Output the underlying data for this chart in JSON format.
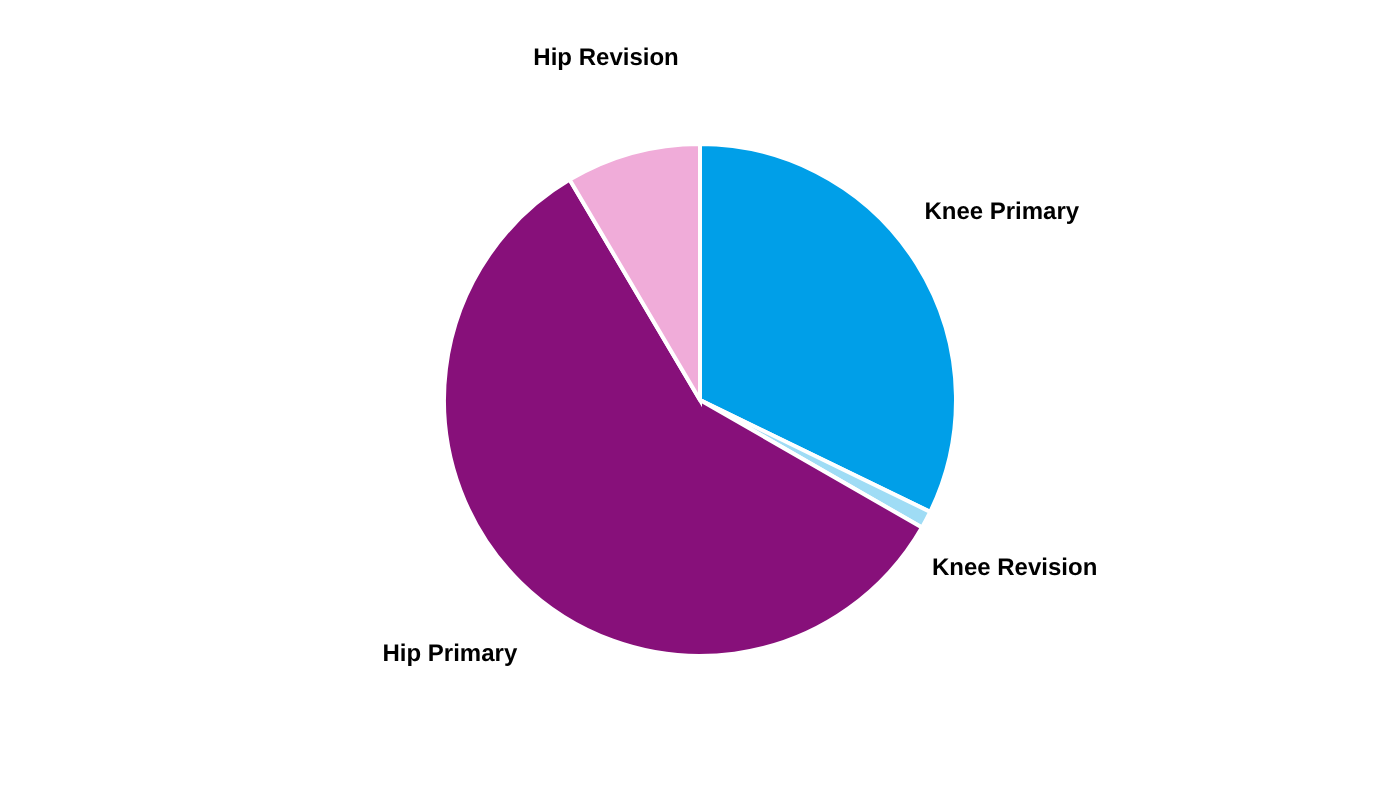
{
  "chart_data": {
    "type": "pie",
    "categories": [
      "Knee Primary",
      "Knee Revision",
      "Hip Primary",
      "Hip Revision"
    ],
    "values": [
      32.2,
      1.1,
      58.2,
      8.5
    ],
    "colors": [
      "#009fe8",
      "#9fdcf5",
      "#87107a",
      "#f0acd9"
    ]
  }
}
